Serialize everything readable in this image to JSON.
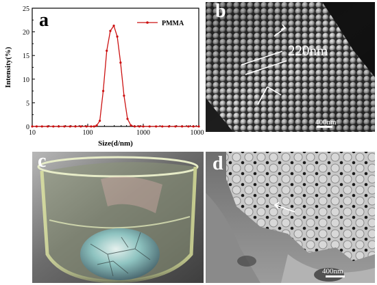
{
  "panels": {
    "a": {
      "letter": "a"
    },
    "b": {
      "letter": "b",
      "annotation": "220nm",
      "scale_bar": "400nm"
    },
    "c": {
      "letter": "c"
    },
    "d": {
      "letter": "d",
      "scale_bar": "400nm"
    }
  },
  "chart_data": {
    "type": "line",
    "xlabel": "Size(d/nm)",
    "ylabel": "Intensity(%)",
    "xscale": "log",
    "xlim": [
      10,
      10000
    ],
    "ylim": [
      0,
      25
    ],
    "xticks": [
      "10",
      "100",
      "1000",
      "10000"
    ],
    "yticks": [
      "0",
      "5",
      "10",
      "15",
      "20",
      "25"
    ],
    "legend": "top-right",
    "series": [
      {
        "name": "PMMA",
        "color": "#cc1111",
        "x": [
          10,
          12,
          15,
          19,
          24,
          30,
          38,
          48,
          60,
          75,
          95,
          115,
          130,
          145,
          165,
          190,
          220,
          255,
          295,
          340,
          390,
          450,
          520,
          600,
          700,
          850,
          1000,
          1300,
          1700,
          2200,
          2900,
          3800,
          5000,
          6500,
          8000,
          10000
        ],
        "y": [
          0,
          0,
          0,
          0,
          0,
          0,
          0,
          0,
          0,
          0,
          0,
          0,
          0,
          0.2,
          1.2,
          7.5,
          16.0,
          20.2,
          21.3,
          19.0,
          13.5,
          6.5,
          1.6,
          0.2,
          0,
          0,
          0,
          0,
          0,
          0,
          0,
          0,
          0,
          0,
          0,
          0
        ]
      }
    ]
  }
}
